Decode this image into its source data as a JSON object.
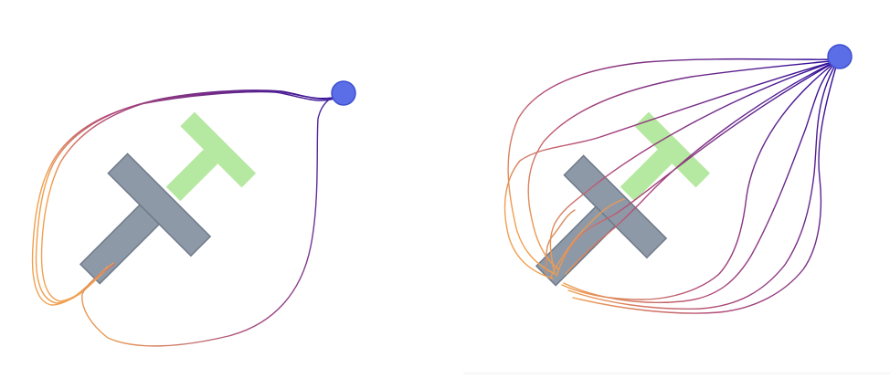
{
  "colors": {
    "background": "#ffffff",
    "target_t": "#b5e8a0",
    "pusher_t": "#8e99a8",
    "pusher_t_border": "#6f7a8a",
    "goal_dot": "#5b6ee8",
    "goal_dot_border": "#3f4fd0",
    "path_start": "#f0a050",
    "path_mid": "#b04878",
    "path_end": "#2a0a9a"
  },
  "panels": [
    {
      "id": "left",
      "trajectory_count": 3
    },
    {
      "id": "right",
      "trajectory_count": 10
    }
  ]
}
